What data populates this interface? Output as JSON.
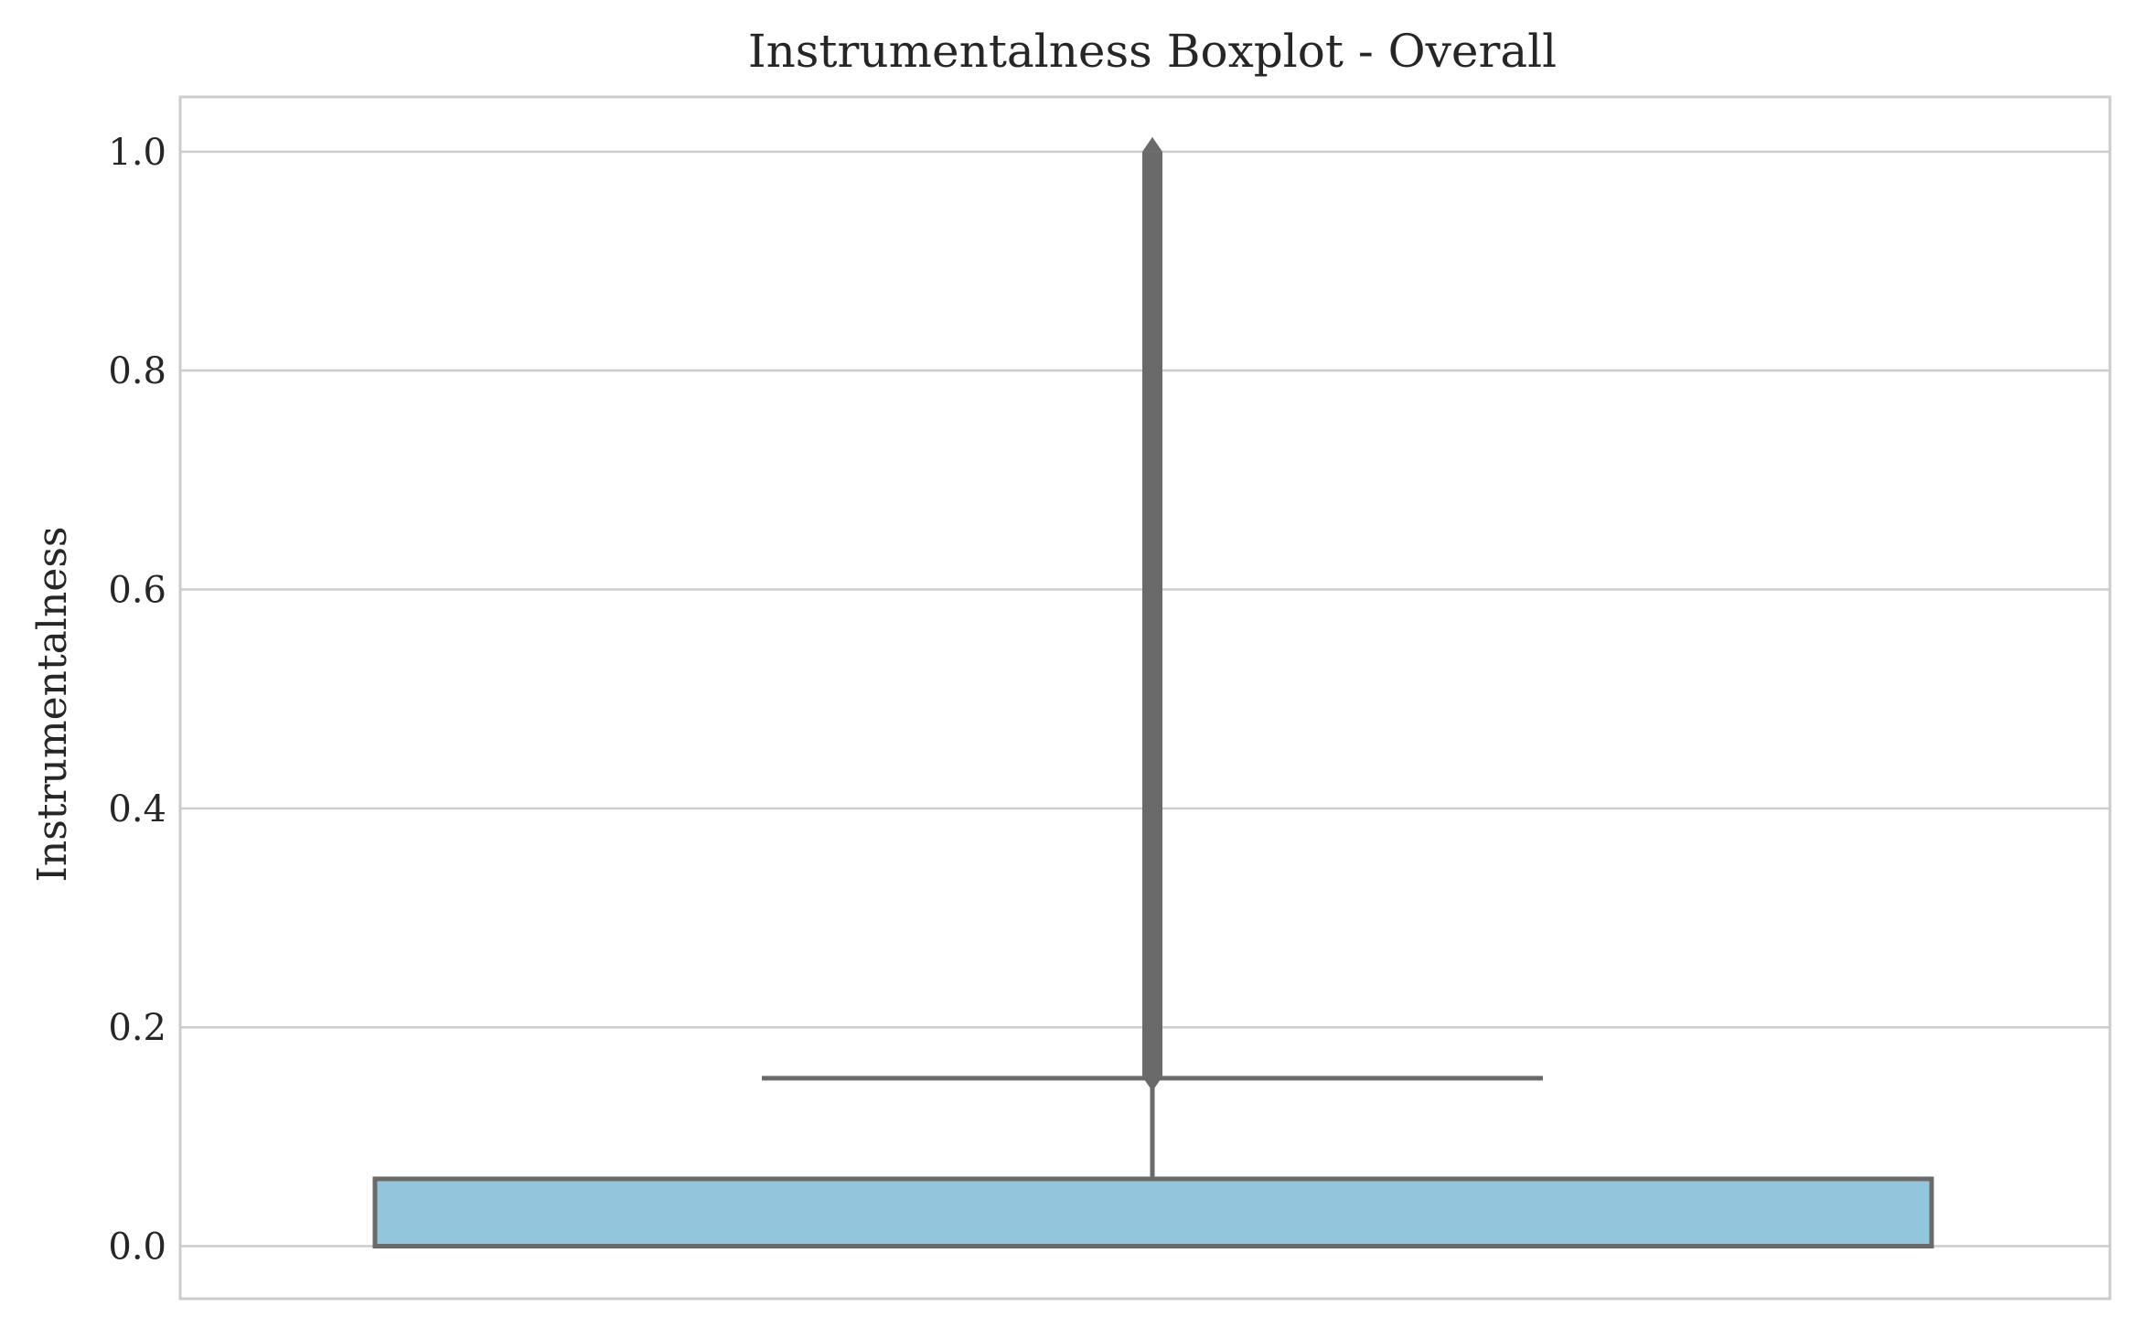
{
  "chart_data": {
    "type": "box",
    "title": "Instrumentalness Boxplot - Overall",
    "xlabel": "",
    "ylabel": "Instrumentalness",
    "ylim": [
      -0.048,
      1.05
    ],
    "yticks": [
      "0.0",
      "0.2",
      "0.4",
      "0.6",
      "0.8",
      "1.0"
    ],
    "ytick_values": [
      0.0,
      0.2,
      0.4,
      0.6,
      0.8,
      1.0
    ],
    "grid": true,
    "box": {
      "min": 0.0,
      "q1": 0.0,
      "median": 0.0,
      "q3": 0.0615,
      "whisker_low": 0.0,
      "whisker_high": 0.1535,
      "outlier_range": [
        0.155,
        1.0
      ]
    },
    "colors": {
      "box_fill": "#92c6dd",
      "box_edge": "#6a6a6a",
      "grid": "#cccccc",
      "frame": "#cccccc"
    }
  }
}
